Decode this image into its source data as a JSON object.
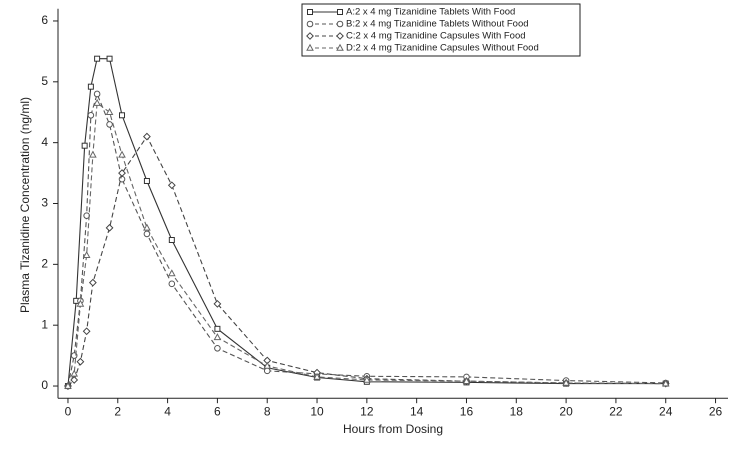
{
  "chart_data": {
    "type": "line",
    "x_label": "Hours from Dosing",
    "y_label": "Plasma Tizanidine Concentration (ng/ml)",
    "xlim": [
      -0.4,
      26.5
    ],
    "xticks": [
      0,
      2,
      4,
      6,
      8,
      10,
      12,
      14,
      16,
      18,
      20,
      22,
      24,
      26
    ],
    "ylim": [
      -0.2,
      6.2
    ],
    "yticks": [
      0,
      1,
      2,
      3,
      4,
      5,
      6
    ],
    "grid": false,
    "legend": "top",
    "series": [
      {
        "name": "A:2 x 4 mg Tizanidine Tablets With Food",
        "color": "#333333",
        "marker": "square",
        "dashed": false,
        "x": [
          0,
          0.33,
          0.67,
          0.92,
          1.17,
          1.67,
          2.17,
          3.17,
          4.17,
          6,
          8,
          10,
          12,
          16,
          20,
          24
        ],
        "values": [
          0,
          1.4,
          3.95,
          4.92,
          5.38,
          5.38,
          4.45,
          3.37,
          2.4,
          0.94,
          0.3,
          0.14,
          0.07,
          0.06,
          0.04,
          0.04
        ]
      },
      {
        "name": "B:2 x 4 mg Tizanidine Tablets Without Food",
        "color": "#555555",
        "marker": "circle",
        "dashed": true,
        "x": [
          0,
          0.25,
          0.5,
          0.75,
          0.92,
          1.17,
          1.67,
          2.17,
          3.17,
          4.17,
          6,
          8,
          10,
          12,
          16,
          20,
          24
        ],
        "values": [
          0,
          0.5,
          1.4,
          2.8,
          4.45,
          4.8,
          4.3,
          3.4,
          2.5,
          1.68,
          0.62,
          0.25,
          0.2,
          0.16,
          0.15,
          0.09,
          0.05
        ]
      },
      {
        "name": "C:2 x 4 mg Tizanidine Capsules With Food",
        "color": "#444444",
        "marker": "diamond",
        "dashed": true,
        "x": [
          0,
          0.25,
          0.5,
          0.75,
          1,
          1.67,
          2.17,
          3.17,
          4.17,
          6,
          8,
          10,
          12,
          16,
          20,
          24
        ],
        "values": [
          0,
          0.1,
          0.4,
          0.9,
          1.7,
          2.6,
          3.5,
          4.1,
          3.3,
          1.35,
          0.42,
          0.22,
          0.12,
          0.08,
          0.05,
          0.04
        ]
      },
      {
        "name": "D:2 x 4 mg Tizanidine Capsules Without Food",
        "color": "#666666",
        "marker": "triangle",
        "dashed": true,
        "x": [
          0,
          0.25,
          0.5,
          0.75,
          1,
          1.17,
          1.67,
          2.17,
          3.17,
          4.17,
          6,
          8,
          10,
          12,
          16,
          20,
          24
        ],
        "values": [
          0,
          0.2,
          1.35,
          2.15,
          3.8,
          4.65,
          4.5,
          3.8,
          2.6,
          1.85,
          0.8,
          0.33,
          0.15,
          0.1,
          0.08,
          0.05,
          0.04
        ]
      }
    ]
  }
}
